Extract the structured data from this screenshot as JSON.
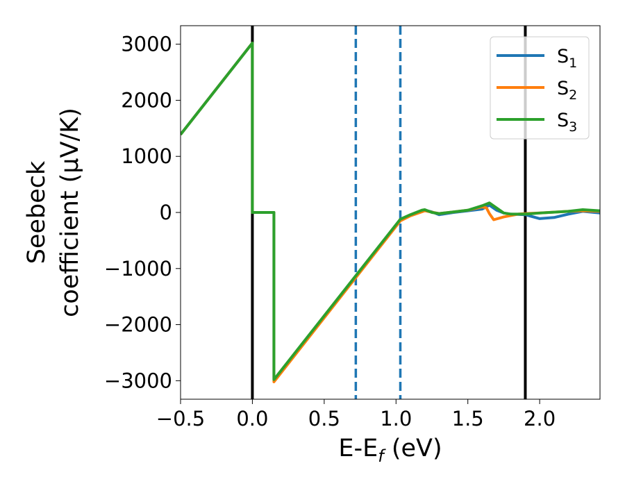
{
  "chart_data": {
    "type": "line",
    "title": "",
    "xlabel": {
      "main": "E-E",
      "sub": "f",
      "tail": " (eV)"
    },
    "ylabel": {
      "line1": "Seebeck",
      "line2": "coefficient  (μV/K)"
    },
    "xlim": [
      -0.5,
      2.42
    ],
    "ylim": [
      -3330,
      3330
    ],
    "x_ticks": [
      -0.5,
      0.0,
      0.5,
      1.0,
      1.5,
      2.0
    ],
    "x_tick_labels": [
      "−0.5",
      "0.0",
      "0.5",
      "1.0",
      "1.5",
      "2.0"
    ],
    "y_ticks": [
      3000,
      2000,
      1000,
      0,
      -1000,
      -2000,
      -3000
    ],
    "y_tick_labels": [
      "3000",
      "2000",
      "1000",
      "0",
      "−1000",
      "−2000",
      "−3000"
    ],
    "grid": false,
    "legend_position": "top-right",
    "vertical_lines": [
      {
        "x": 0.0,
        "style": "solid",
        "color": "#000000"
      },
      {
        "x": 1.9,
        "style": "solid",
        "color": "#000000"
      },
      {
        "x": 0.72,
        "style": "dashed",
        "color": "#1f77b4"
      },
      {
        "x": 1.03,
        "style": "dashed",
        "color": "#1f77b4"
      }
    ],
    "series": [
      {
        "name": {
          "base": "S",
          "sub": "1"
        },
        "color": "#1f77b4",
        "points": [
          [
            -0.5,
            1390
          ],
          [
            0.0,
            3020
          ],
          [
            0.0,
            0
          ],
          [
            0.15,
            0
          ],
          [
            0.15,
            -2990
          ],
          [
            1.03,
            -130
          ],
          [
            1.1,
            -50
          ],
          [
            1.18,
            20
          ],
          [
            1.2,
            40
          ],
          [
            1.25,
            10
          ],
          [
            1.3,
            -40
          ],
          [
            1.4,
            0
          ],
          [
            1.5,
            30
          ],
          [
            1.6,
            60
          ],
          [
            1.65,
            130
          ],
          [
            1.7,
            40
          ],
          [
            1.75,
            -10
          ],
          [
            1.8,
            -30
          ],
          [
            1.9,
            -40
          ],
          [
            2.0,
            -110
          ],
          [
            2.1,
            -90
          ],
          [
            2.2,
            -30
          ],
          [
            2.3,
            20
          ],
          [
            2.42,
            -10
          ]
        ]
      },
      {
        "name": {
          "base": "S",
          "sub": "2"
        },
        "color": "#ff7f0e",
        "points": [
          [
            -0.5,
            1390
          ],
          [
            0.0,
            3020
          ],
          [
            0.0,
            0
          ],
          [
            0.15,
            0
          ],
          [
            0.15,
            -3020
          ],
          [
            1.03,
            -150
          ],
          [
            1.1,
            -60
          ],
          [
            1.2,
            30
          ],
          [
            1.3,
            -20
          ],
          [
            1.4,
            10
          ],
          [
            1.5,
            40
          ],
          [
            1.6,
            100
          ],
          [
            1.63,
            80
          ],
          [
            1.65,
            -20
          ],
          [
            1.68,
            -130
          ],
          [
            1.75,
            -80
          ],
          [
            1.85,
            -30
          ],
          [
            1.9,
            -20
          ],
          [
            2.0,
            -10
          ],
          [
            2.2,
            20
          ],
          [
            2.3,
            30
          ],
          [
            2.42,
            20
          ]
        ]
      },
      {
        "name": {
          "base": "S",
          "sub": "3"
        },
        "color": "#2ca02c",
        "points": [
          [
            -0.5,
            1390
          ],
          [
            0.0,
            3020
          ],
          [
            0.0,
            0
          ],
          [
            0.15,
            0
          ],
          [
            0.15,
            -2980
          ],
          [
            1.03,
            -120
          ],
          [
            1.1,
            -40
          ],
          [
            1.18,
            40
          ],
          [
            1.2,
            50
          ],
          [
            1.25,
            0
          ],
          [
            1.3,
            -20
          ],
          [
            1.4,
            10
          ],
          [
            1.5,
            40
          ],
          [
            1.6,
            120
          ],
          [
            1.65,
            170
          ],
          [
            1.7,
            80
          ],
          [
            1.75,
            -10
          ],
          [
            1.8,
            -30
          ],
          [
            1.9,
            -30
          ],
          [
            2.0,
            -10
          ],
          [
            2.2,
            20
          ],
          [
            2.3,
            50
          ],
          [
            2.42,
            30
          ]
        ]
      }
    ]
  }
}
